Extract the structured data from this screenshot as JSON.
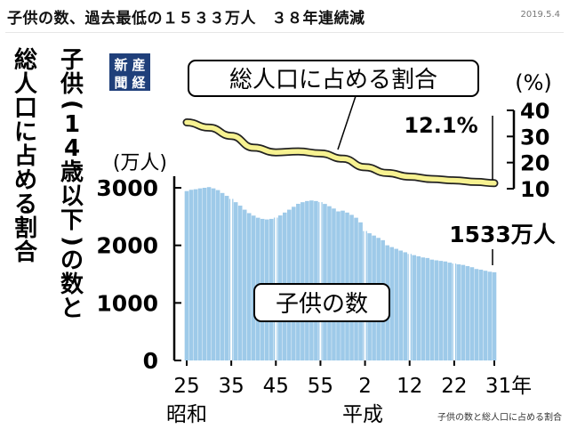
{
  "header": {
    "title": "子供の数、過去最低の１５３３万人　３８年連続減",
    "date": "2019.5.4"
  },
  "figure": {
    "vertical_title_col1": "子供(14歳以下)の数と",
    "vertical_title_col2": "総人口に占める割合",
    "logo": "産経新聞",
    "caption": "子供の数と総人口に占める割合",
    "colors": {
      "bar": "#9ecae9",
      "line": "#f7f291",
      "line_outline": "#222222",
      "text": "#000000"
    }
  },
  "chart_data": {
    "type": "bar",
    "x_ticks": [
      "25",
      "35",
      "45",
      "55",
      "2",
      "12",
      "22",
      "31年"
    ],
    "x_era_labels": [
      "昭和",
      "平成"
    ],
    "y_left": {
      "unit": "(万人)",
      "ticks": [
        0,
        1000,
        2000,
        3000
      ],
      "ylim": [
        0,
        3000
      ]
    },
    "y_right": {
      "unit": "(%)",
      "ticks": [
        10,
        20,
        30,
        40
      ],
      "ylim": [
        10,
        40
      ]
    },
    "series": [
      {
        "name": "子供の数",
        "type": "bar",
        "unit": "万人",
        "x": [
          "1950",
          "1951",
          "1952",
          "1953",
          "1954",
          "1955",
          "1956",
          "1957",
          "1958",
          "1959",
          "1960",
          "1961",
          "1962",
          "1963",
          "1964",
          "1965",
          "1966",
          "1967",
          "1968",
          "1969",
          "1970",
          "1971",
          "1972",
          "1973",
          "1974",
          "1975",
          "1976",
          "1977",
          "1978",
          "1979",
          "1980",
          "1981",
          "1982",
          "1983",
          "1984",
          "1985",
          "1986",
          "1987",
          "1988",
          "1989",
          "1990",
          "1991",
          "1992",
          "1993",
          "1994",
          "1995",
          "1996",
          "1997",
          "1998",
          "1999",
          "2000",
          "2001",
          "2002",
          "2003",
          "2004",
          "2005",
          "2006",
          "2007",
          "2008",
          "2009",
          "2010",
          "2011",
          "2012",
          "2013",
          "2014",
          "2015",
          "2016",
          "2017",
          "2018",
          "2019"
        ],
        "values": [
          2943,
          2965,
          2975,
          2990,
          3000,
          3012,
          2990,
          2960,
          2910,
          2860,
          2807,
          2750,
          2690,
          2620,
          2560,
          2517,
          2480,
          2460,
          2450,
          2460,
          2482,
          2520,
          2570,
          2620,
          2670,
          2722,
          2750,
          2770,
          2780,
          2770,
          2751,
          2720,
          2680,
          2640,
          2590,
          2603,
          2570,
          2530,
          2480,
          2400,
          2249,
          2210,
          2170,
          2130,
          2090,
          2001,
          1970,
          1940,
          1910,
          1880,
          1851,
          1830,
          1810,
          1790,
          1780,
          1752,
          1740,
          1730,
          1720,
          1700,
          1684,
          1670,
          1660,
          1640,
          1620,
          1589,
          1578,
          1559,
          1542,
          1533
        ],
        "label": "1533万人"
      },
      {
        "name": "総人口に占める割合",
        "type": "line",
        "unit": "%",
        "x": [
          "1950",
          "1955",
          "1960",
          "1965",
          "1970",
          "1975",
          "1980",
          "1985",
          "1990",
          "1995",
          "2000",
          "2005",
          "2010",
          "2015",
          "2019"
        ],
        "values": [
          35.4,
          33.4,
          30.2,
          25.7,
          23.9,
          24.3,
          23.5,
          21.5,
          18.2,
          16.0,
          14.6,
          13.7,
          13.2,
          12.6,
          12.1
        ],
        "label": "12.1%"
      }
    ]
  }
}
